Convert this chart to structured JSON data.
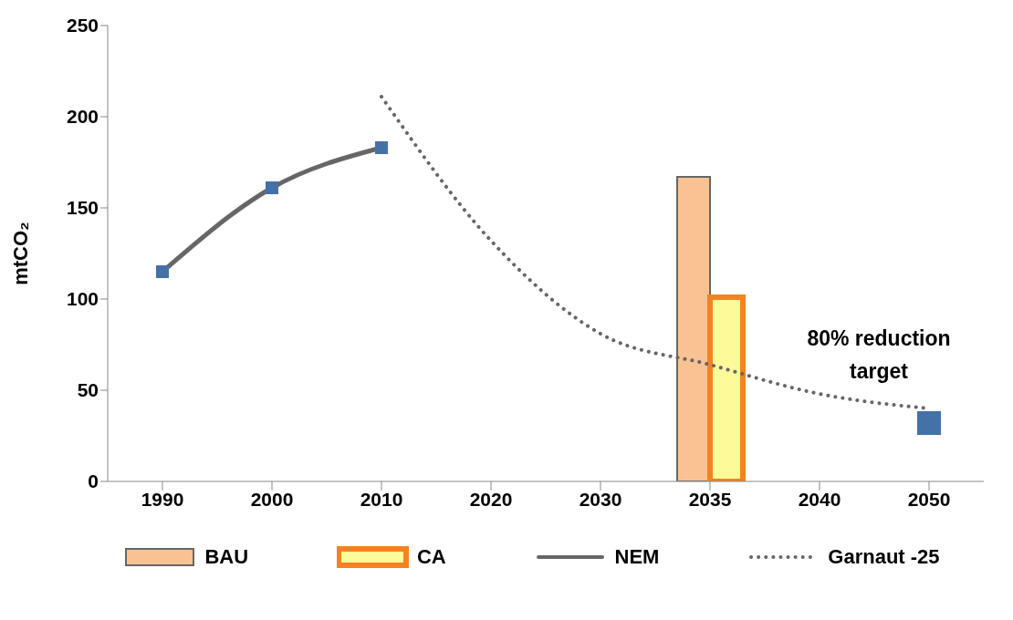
{
  "chart_data": {
    "type": "bar",
    "ylabel": "mtCO₂",
    "categories": [
      "1990",
      "2000",
      "2010",
      "2020",
      "2030",
      "2035",
      "2040",
      "2050"
    ],
    "series": [
      {
        "name": "BAU",
        "color": "#f8c293",
        "values": [
          null,
          null,
          null,
          null,
          null,
          167,
          null,
          null
        ]
      },
      {
        "name": "CA",
        "color": "#fdfa99",
        "values": [
          null,
          null,
          null,
          null,
          null,
          101,
          null,
          null
        ]
      },
      {
        "name": "NEM",
        "type": "line",
        "color": "#666666",
        "marker": "square",
        "line_style": "solid",
        "values": [
          115,
          161,
          183,
          null,
          null,
          null,
          null,
          null
        ]
      },
      {
        "name": "Garnaut -25",
        "type": "line",
        "color": "#666666",
        "marker": "none",
        "line_style": "dotted",
        "values": [
          null,
          null,
          211,
          132,
          81,
          64,
          48,
          40
        ]
      },
      {
        "type": "scatter",
        "color": "#4472a8",
        "marker": "square",
        "values": [
          null,
          null,
          null,
          null,
          null,
          null,
          null,
          32
        ]
      }
    ],
    "ylim": [
      0,
      250
    ],
    "yticks": [
      0,
      50,
      100,
      150,
      200,
      250
    ],
    "legend": "bottom",
    "annotations": [
      "80% reduction target"
    ]
  }
}
